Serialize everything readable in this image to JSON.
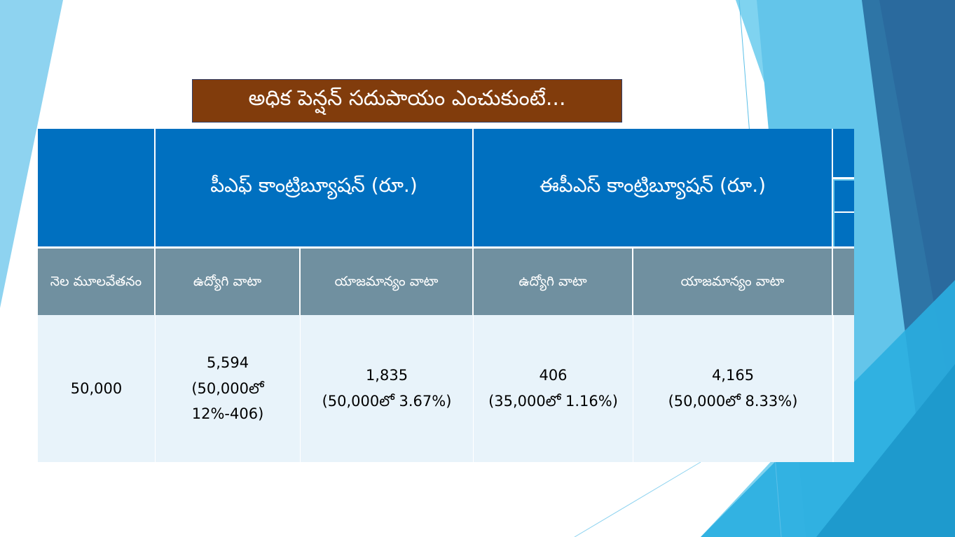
{
  "slide": {
    "title": "అధిక పెన్షన్ సదుపాయం ఎంచుకుంటే...",
    "colors": {
      "title_bg": "#813C0C",
      "header_blue": "#0070C0",
      "subheader_gray": "#7090A0",
      "data_bg": "#E8F3FA"
    }
  },
  "table": {
    "group_headers": [
      "పీఎఫ్ కాంట్రిబ్యూషన్ (రూ.)",
      "ఈపీఎస్ కాంట్రిబ్యూషన్ (రూ.)"
    ],
    "sub_headers": [
      "నెల మూలవేతనం",
      "ఉద్యోగి వాటా",
      "యాజమాన్యం వాటా",
      "ఉద్యోగి వాటా",
      "యాజమాన్యం వాటా"
    ],
    "row": [
      {
        "value": "50,000",
        "note": ""
      },
      {
        "value": "5,594",
        "note": "(50,000లో 12%-406)"
      },
      {
        "value": "1,835",
        "note": "(50,000లో 3.67%)"
      },
      {
        "value": "406",
        "note": "(35,000లో 1.16%)"
      },
      {
        "value": "4,165",
        "note": "(50,000లో 8.33%)"
      }
    ]
  }
}
